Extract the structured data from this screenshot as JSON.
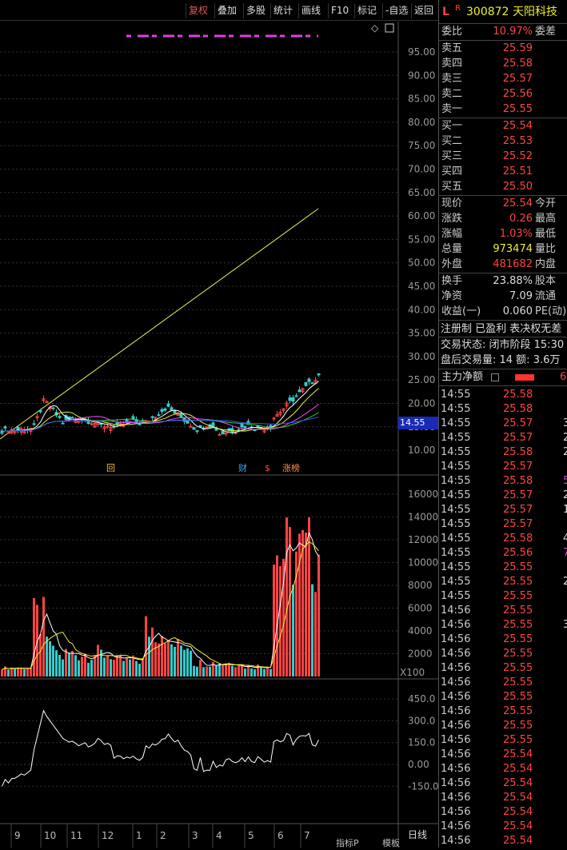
{
  "toolbar": {
    "items": [
      "复权",
      "叠加",
      "多股",
      "统计",
      "画线",
      "F10",
      "标记",
      "-自选",
      "返回"
    ]
  },
  "price_axis": [
    "95.00",
    "90.00",
    "85.00",
    "80.00",
    "75.00",
    "70.00",
    "65.00",
    "60.00",
    "55.00",
    "50.00",
    "45.00",
    "40.00",
    "35.00",
    "30.00",
    "25.00",
    "20.00",
    "15.00",
    "10.00"
  ],
  "current_price_tag": "14.55",
  "vol_axis": [
    "16000",
    "14000",
    "12000",
    "10000",
    "8000",
    "6000",
    "4000",
    "2000"
  ],
  "vol_unit": "X100",
  "ind_axis": [
    "450.0",
    "300.0",
    "150.0",
    "0.00",
    "-150.0"
  ],
  "x_axis": [
    "9",
    "10",
    "11",
    "12",
    "1",
    "2",
    "3",
    "4",
    "5",
    "6",
    "7"
  ],
  "period": "日线",
  "bottom_tabs": [
    "指标P",
    "模板"
  ],
  "markers": {
    "hui": "回",
    "cai": "财",
    "dollar": "$",
    "zhangbang": "涨榜"
  },
  "quote": {
    "header_l": "L",
    "header_r": "R",
    "code": "300872",
    "name": "天阳科技",
    "webi_label": "委比",
    "webi_value": "10.97%",
    "weicha_label": "委差",
    "asks": [
      {
        "label": "卖五",
        "price": "25.59"
      },
      {
        "label": "卖四",
        "price": "25.58"
      },
      {
        "label": "卖三",
        "price": "25.57"
      },
      {
        "label": "卖二",
        "price": "25.56"
      },
      {
        "label": "卖一",
        "price": "25.55"
      }
    ],
    "bids": [
      {
        "label": "买一",
        "price": "25.54"
      },
      {
        "label": "买二",
        "price": "25.53"
      },
      {
        "label": "买三",
        "price": "25.52"
      },
      {
        "label": "买四",
        "price": "25.51"
      },
      {
        "label": "买五",
        "price": "25.50"
      }
    ],
    "stats": [
      {
        "label": "现价",
        "value": "25.54",
        "ext": "今开"
      },
      {
        "label": "涨跌",
        "value": "0.26",
        "ext": "最高"
      },
      {
        "label": "涨幅",
        "value": "1.03%",
        "ext": "最低"
      },
      {
        "label": "总量",
        "value": "973474",
        "ext": "量比"
      },
      {
        "label": "外盘",
        "value": "481682",
        "ext": "内盘"
      }
    ],
    "stats2": [
      {
        "label": "换手",
        "value": "23.88%",
        "ext": "股本"
      },
      {
        "label": "净资",
        "value": "7.09",
        "ext": "流通"
      },
      {
        "label": "收益(一)",
        "value": "0.060",
        "ext": "PE(动)"
      }
    ],
    "reg": "注册制 已盈利 表决权无差",
    "trade_state": "交易状态: 闭市阶段 15:30",
    "after_hours": "盘后交易量: 14  额: 3.6万",
    "main_flow_label": "主力净额",
    "main_flow_value": "6"
  },
  "ticks": [
    {
      "t": "14:55",
      "p": "25.58",
      "c": "red"
    },
    {
      "t": "14:55",
      "p": "25.58",
      "c": "red"
    },
    {
      "t": "14:55",
      "p": "25.57",
      "c": "red"
    },
    {
      "t": "14:55",
      "p": "25.57",
      "c": "red"
    },
    {
      "t": "14:55",
      "p": "25.58",
      "c": "red"
    },
    {
      "t": "14:55",
      "p": "25.57",
      "c": "red"
    },
    {
      "t": "14:55",
      "p": "25.58",
      "c": "red"
    },
    {
      "t": "14:55",
      "p": "25.57",
      "c": "red"
    },
    {
      "t": "14:55",
      "p": "25.57",
      "c": "red"
    },
    {
      "t": "14:55",
      "p": "25.57",
      "c": "red"
    },
    {
      "t": "14:55",
      "p": "25.58",
      "c": "red"
    },
    {
      "t": "14:55",
      "p": "25.56",
      "c": "red"
    },
    {
      "t": "14:55",
      "p": "25.55",
      "c": "red"
    },
    {
      "t": "14:55",
      "p": "25.55",
      "c": "red"
    },
    {
      "t": "14:55",
      "p": "25.55",
      "c": "red"
    },
    {
      "t": "14:56",
      "p": "25.55",
      "c": "red"
    },
    {
      "t": "14:56",
      "p": "25.55",
      "c": "red"
    },
    {
      "t": "14:56",
      "p": "25.55",
      "c": "red"
    },
    {
      "t": "14:56",
      "p": "25.55",
      "c": "red"
    },
    {
      "t": "14:56",
      "p": "25.55",
      "c": "red"
    },
    {
      "t": "14:56",
      "p": "25.55",
      "c": "red"
    },
    {
      "t": "14:56",
      "p": "25.55",
      "c": "red"
    },
    {
      "t": "14:56",
      "p": "25.55",
      "c": "red"
    },
    {
      "t": "14:56",
      "p": "25.55",
      "c": "red"
    },
    {
      "t": "14:56",
      "p": "25.55",
      "c": "red"
    },
    {
      "t": "14:56",
      "p": "25.54",
      "c": "red"
    },
    {
      "t": "14:56",
      "p": "25.54",
      "c": "red"
    },
    {
      "t": "14:56",
      "p": "25.54",
      "c": "red"
    },
    {
      "t": "14:56",
      "p": "25.54",
      "c": "red"
    },
    {
      "t": "14:56",
      "p": "25.54",
      "c": "red"
    },
    {
      "t": "14:56",
      "p": "25.54",
      "c": "red"
    },
    {
      "t": "14:56",
      "p": "25.54",
      "c": "red"
    },
    {
      "t": "14:56",
      "p": "25.52",
      "c": "red"
    }
  ],
  "tick_side_vals": [
    "",
    "",
    "3",
    "2",
    "2",
    "",
    "5",
    "2",
    "1",
    "",
    "4",
    "7",
    "",
    "2",
    "",
    "",
    "3",
    "",
    "",
    "",
    "",
    "",
    "",
    "",
    "",
    "",
    "",
    "",
    "",
    "",
    "",
    "",
    ""
  ],
  "colors": {
    "up": "#ff4444",
    "down": "#33cccc",
    "line": "#eeee33",
    "accent": "#e05555"
  }
}
